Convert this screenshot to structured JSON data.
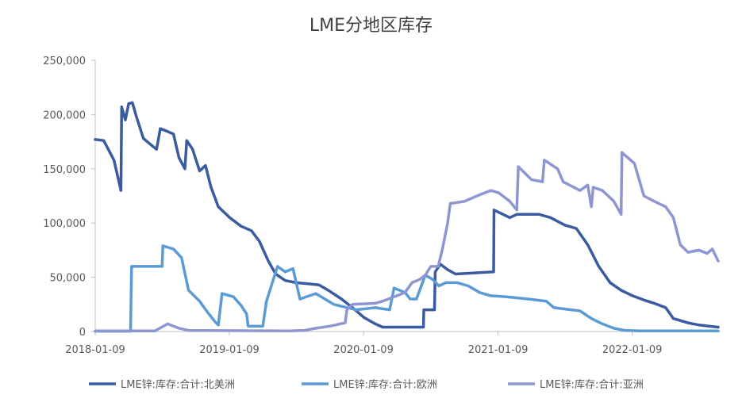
{
  "chart_data": {
    "type": "line",
    "title": "LME分地区库存",
    "ylim": [
      0,
      250000
    ],
    "xlim": [
      "2018-01-09",
      "2022-08-31"
    ],
    "y_ticks": [
      "250,000",
      "200,000",
      "150,000",
      "100,000",
      "50,000",
      "0"
    ],
    "y_tick_values": [
      250000,
      200000,
      150000,
      100000,
      50000,
      0
    ],
    "x_ticks": [
      "2018-01-09",
      "2019-01-09",
      "2020-01-09",
      "2021-01-09",
      "2022-01-09"
    ],
    "legend_position": "bottom",
    "grid": false,
    "series": [
      {
        "name": "LME锌:库存:合计:北美洲",
        "color": "#3A5BA0",
        "points": [
          [
            "2018-01-09",
            177000
          ],
          [
            "2018-02-01",
            176000
          ],
          [
            "2018-03-01",
            158000
          ],
          [
            "2018-03-20",
            130000
          ],
          [
            "2018-03-22",
            207000
          ],
          [
            "2018-04-01",
            195000
          ],
          [
            "2018-04-10",
            210000
          ],
          [
            "2018-04-20",
            211000
          ],
          [
            "2018-05-01",
            198000
          ],
          [
            "2018-05-20",
            178000
          ],
          [
            "2018-06-10",
            172000
          ],
          [
            "2018-06-25",
            168000
          ],
          [
            "2018-07-05",
            187000
          ],
          [
            "2018-07-20",
            185000
          ],
          [
            "2018-08-10",
            182000
          ],
          [
            "2018-08-25",
            160000
          ],
          [
            "2018-09-10",
            150000
          ],
          [
            "2018-09-15",
            176000
          ],
          [
            "2018-10-01",
            168000
          ],
          [
            "2018-10-20",
            148000
          ],
          [
            "2018-11-05",
            153000
          ],
          [
            "2018-11-20",
            133000
          ],
          [
            "2018-12-10",
            115000
          ],
          [
            "2019-01-10",
            105000
          ],
          [
            "2019-02-10",
            97000
          ],
          [
            "2019-03-10",
            93000
          ],
          [
            "2019-04-01",
            83000
          ],
          [
            "2019-04-25",
            65000
          ],
          [
            "2019-05-15",
            53000
          ],
          [
            "2019-06-10",
            47000
          ],
          [
            "2019-07-10",
            45000
          ],
          [
            "2019-08-10",
            44000
          ],
          [
            "2019-09-10",
            43000
          ],
          [
            "2019-10-10",
            37000
          ],
          [
            "2019-11-10",
            30000
          ],
          [
            "2019-12-10",
            22000
          ],
          [
            "2020-01-10",
            13000
          ],
          [
            "2020-02-10",
            7000
          ],
          [
            "2020-03-01",
            4000
          ],
          [
            "2020-06-20",
            4000
          ],
          [
            "2020-06-21",
            20000
          ],
          [
            "2020-07-20",
            20000
          ],
          [
            "2020-07-22",
            55000
          ],
          [
            "2020-08-05",
            62000
          ],
          [
            "2020-08-25",
            57000
          ],
          [
            "2020-09-15",
            53000
          ],
          [
            "2020-12-28",
            55000
          ],
          [
            "2020-12-29",
            112000
          ],
          [
            "2021-02-10",
            105000
          ],
          [
            "2021-03-01",
            108000
          ],
          [
            "2021-05-01",
            108000
          ],
          [
            "2021-06-01",
            105000
          ],
          [
            "2021-07-10",
            98000
          ],
          [
            "2021-08-10",
            95000
          ],
          [
            "2021-09-10",
            80000
          ],
          [
            "2021-10-10",
            60000
          ],
          [
            "2021-11-10",
            45000
          ],
          [
            "2021-12-10",
            38000
          ],
          [
            "2022-01-10",
            33000
          ],
          [
            "2022-02-10",
            29000
          ],
          [
            "2022-03-10",
            26000
          ],
          [
            "2022-04-10",
            22000
          ],
          [
            "2022-05-01",
            12000
          ],
          [
            "2022-06-10",
            8000
          ],
          [
            "2022-07-10",
            6000
          ],
          [
            "2022-08-31",
            4000
          ]
        ]
      },
      {
        "name": "LME锌:库存:合计:欧洲",
        "color": "#5B9BD5",
        "points": [
          [
            "2018-01-09",
            300
          ],
          [
            "2018-04-15",
            300
          ],
          [
            "2018-04-18",
            60000
          ],
          [
            "2018-07-10",
            60000
          ],
          [
            "2018-07-12",
            79000
          ],
          [
            "2018-08-10",
            76000
          ],
          [
            "2018-09-01",
            68000
          ],
          [
            "2018-09-20",
            38000
          ],
          [
            "2018-10-20",
            28000
          ],
          [
            "2018-11-10",
            18000
          ],
          [
            "2018-12-01",
            9000
          ],
          [
            "2018-12-10",
            6000
          ],
          [
            "2018-12-20",
            35000
          ],
          [
            "2019-01-20",
            32000
          ],
          [
            "2019-02-10",
            24000
          ],
          [
            "2019-02-25",
            16000
          ],
          [
            "2019-03-01",
            5000
          ],
          [
            "2019-04-10",
            5000
          ],
          [
            "2019-04-20",
            28000
          ],
          [
            "2019-05-20",
            60000
          ],
          [
            "2019-06-10",
            55000
          ],
          [
            "2019-07-01",
            58000
          ],
          [
            "2019-07-20",
            30000
          ],
          [
            "2019-09-01",
            35000
          ],
          [
            "2019-10-20",
            25000
          ],
          [
            "2019-12-20",
            20000
          ],
          [
            "2020-02-10",
            22000
          ],
          [
            "2020-03-20",
            20000
          ],
          [
            "2020-04-01",
            40000
          ],
          [
            "2020-05-01",
            36000
          ],
          [
            "2020-05-15",
            30000
          ],
          [
            "2020-06-01",
            30000
          ],
          [
            "2020-06-25",
            52000
          ],
          [
            "2020-07-15",
            48000
          ],
          [
            "2020-08-01",
            42000
          ],
          [
            "2020-08-20",
            45000
          ],
          [
            "2020-09-20",
            45000
          ],
          [
            "2020-10-20",
            42000
          ],
          [
            "2020-11-20",
            36000
          ],
          [
            "2020-12-20",
            33000
          ],
          [
            "2021-02-01",
            32000
          ],
          [
            "2021-04-01",
            30000
          ],
          [
            "2021-05-20",
            28000
          ],
          [
            "2021-06-10",
            22000
          ],
          [
            "2021-08-20",
            19000
          ],
          [
            "2021-09-20",
            12000
          ],
          [
            "2021-10-20",
            7000
          ],
          [
            "2021-11-20",
            3000
          ],
          [
            "2021-12-20",
            1000
          ],
          [
            "2022-02-01",
            500
          ],
          [
            "2022-08-31",
            500
          ]
        ]
      },
      {
        "name": "LME锌:库存:合计:亚洲",
        "color": "#8E96D2",
        "points": [
          [
            "2018-01-09",
            500
          ],
          [
            "2018-06-20",
            500
          ],
          [
            "2018-07-25",
            7000
          ],
          [
            "2018-08-25",
            3000
          ],
          [
            "2018-09-20",
            1000
          ],
          [
            "2019-06-20",
            500
          ],
          [
            "2019-08-01",
            1000
          ],
          [
            "2019-09-01",
            3000
          ],
          [
            "2019-10-10",
            5000
          ],
          [
            "2019-11-20",
            8000
          ],
          [
            "2019-11-25",
            20000
          ],
          [
            "2019-12-10",
            25000
          ],
          [
            "2020-02-10",
            26000
          ],
          [
            "2020-03-01",
            28000
          ],
          [
            "2020-04-01",
            32000
          ],
          [
            "2020-05-01",
            36000
          ],
          [
            "2020-05-20",
            45000
          ],
          [
            "2020-06-10",
            48000
          ],
          [
            "2020-06-25",
            52000
          ],
          [
            "2020-07-10",
            60000
          ],
          [
            "2020-07-30",
            60000
          ],
          [
            "2020-08-10",
            75000
          ],
          [
            "2020-08-25",
            100000
          ],
          [
            "2020-09-01",
            118000
          ],
          [
            "2020-10-10",
            120000
          ],
          [
            "2020-11-20",
            126000
          ],
          [
            "2020-12-20",
            130000
          ],
          [
            "2021-01-10",
            128000
          ],
          [
            "2021-02-10",
            120000
          ],
          [
            "2021-03-01",
            112000
          ],
          [
            "2021-03-05",
            152000
          ],
          [
            "2021-04-10",
            140000
          ],
          [
            "2021-05-10",
            138000
          ],
          [
            "2021-05-15",
            158000
          ],
          [
            "2021-06-20",
            150000
          ],
          [
            "2021-07-05",
            138000
          ],
          [
            "2021-08-20",
            130000
          ],
          [
            "2021-09-10",
            135000
          ],
          [
            "2021-09-20",
            115000
          ],
          [
            "2021-09-25",
            133000
          ],
          [
            "2021-10-20",
            130000
          ],
          [
            "2021-11-20",
            120000
          ],
          [
            "2021-12-10",
            108000
          ],
          [
            "2021-12-12",
            165000
          ],
          [
            "2022-01-15",
            155000
          ],
          [
            "2022-02-10",
            125000
          ],
          [
            "2022-03-10",
            120000
          ],
          [
            "2022-04-10",
            115000
          ],
          [
            "2022-05-01",
            105000
          ],
          [
            "2022-05-20",
            80000
          ],
          [
            "2022-06-10",
            73000
          ],
          [
            "2022-07-10",
            75000
          ],
          [
            "2022-08-01",
            72000
          ],
          [
            "2022-08-15",
            76000
          ],
          [
            "2022-08-31",
            65000
          ]
        ]
      }
    ]
  }
}
